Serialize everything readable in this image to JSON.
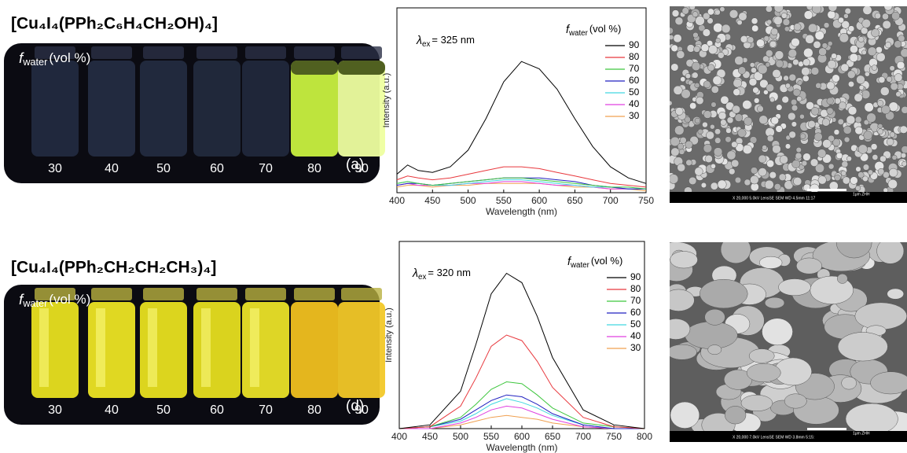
{
  "photos": [
    {
      "title": "[Cu₄I₄(PPh₂C₆H₄CH₂OH)₄]",
      "label_symbol": "f",
      "label_subscript": "water",
      "label_unit": "(vol %)",
      "vials": [
        30,
        40,
        50,
        60,
        70,
        80,
        90
      ],
      "panel": "(a)"
    },
    {
      "title": "[Cu₄I₄(PPh₂CH₂CH₂CH₃)₄]",
      "label_symbol": "f",
      "label_subscript": "water",
      "label_unit": "(vol %)",
      "vials": [
        30,
        40,
        50,
        60,
        70,
        80,
        90
      ],
      "panel": "(d)"
    }
  ],
  "sem": [
    {
      "footer": "X 20,000   5.0kV  LensSE SEM   WD 4.5mm  11:17",
      "scale": "1μm  ZHH"
    },
    {
      "footer": "X 20,000   7.0kV  LensSE SEM   WD 3.8mm  5:15:",
      "scale": "1μm  ZHH"
    }
  ],
  "chart_data": [
    {
      "type": "line",
      "x_label": "Wavelength (nm)",
      "y_label": "Intensity (a.u.)",
      "annotation": {
        "symbol": "λ",
        "subscript": "ex",
        "text": "= 325 nm"
      },
      "legend_title": {
        "symbol": "f",
        "subscript": "water",
        "unit": "(vol %)"
      },
      "x": [
        400,
        415,
        430,
        450,
        475,
        500,
        525,
        550,
        575,
        600,
        625,
        650,
        675,
        700,
        725,
        750
      ],
      "xlim": [
        400,
        750
      ],
      "xticks": [
        400,
        450,
        500,
        550,
        600,
        650,
        700,
        750
      ],
      "ylim": [
        0,
        100
      ],
      "series": [
        {
          "name": "90",
          "color": "#000000",
          "values": [
            10,
            15,
            12,
            11,
            14,
            23,
            40,
            60,
            71,
            67,
            56,
            40,
            25,
            14,
            8,
            5
          ]
        },
        {
          "name": "80",
          "color": "#e8383d",
          "values": [
            7,
            9,
            8,
            7,
            8,
            10,
            12,
            14,
            14,
            13,
            11,
            9,
            7,
            5,
            4,
            3
          ]
        },
        {
          "name": "70",
          "color": "#3ec63e",
          "values": [
            5,
            6,
            5,
            4,
            5,
            6,
            7,
            8,
            8,
            7,
            6,
            5,
            4,
            3,
            3,
            2
          ]
        },
        {
          "name": "60",
          "color": "#2020c0",
          "values": [
            4,
            5,
            5,
            4,
            5,
            6,
            7,
            8,
            8,
            8,
            7,
            6,
            4,
            3,
            2,
            2
          ]
        },
        {
          "name": "50",
          "color": "#40d8e0",
          "values": [
            5,
            6,
            5,
            4,
            4,
            5,
            6,
            7,
            7,
            6,
            5,
            4,
            3,
            3,
            2,
            2
          ]
        },
        {
          "name": "40",
          "color": "#e040e0",
          "values": [
            4,
            5,
            4,
            4,
            4,
            5,
            5,
            6,
            6,
            5,
            4,
            4,
            3,
            2,
            2,
            2
          ]
        },
        {
          "name": "30",
          "color": "#f0a050",
          "values": [
            3,
            4,
            4,
            3,
            4,
            4,
            5,
            5,
            5,
            5,
            4,
            3,
            3,
            2,
            2,
            1
          ]
        }
      ]
    },
    {
      "type": "line",
      "x_label": "Wavelength (nm)",
      "y_label": "Intensity (a.u.)",
      "annotation": {
        "symbol": "λ",
        "subscript": "ex",
        "text": "= 320 nm"
      },
      "legend_title": {
        "symbol": "f",
        "subscript": "water",
        "unit": "(vol %)"
      },
      "x": [
        400,
        450,
        500,
        525,
        550,
        575,
        600,
        625,
        650,
        700,
        750,
        800
      ],
      "xlim": [
        400,
        800
      ],
      "xticks": [
        400,
        450,
        500,
        550,
        600,
        650,
        700,
        750,
        800
      ],
      "ylim": [
        0,
        100
      ],
      "series": [
        {
          "name": "90",
          "color": "#000000",
          "values": [
            0,
            2,
            20,
            45,
            72,
            83,
            78,
            60,
            38,
            10,
            2,
            0
          ]
        },
        {
          "name": "80",
          "color": "#e8383d",
          "values": [
            0,
            1,
            12,
            27,
            44,
            50,
            47,
            36,
            22,
            6,
            1,
            0
          ]
        },
        {
          "name": "70",
          "color": "#3ec63e",
          "values": [
            0,
            1,
            6,
            13,
            21,
            25,
            24,
            18,
            11,
            3,
            1,
            0
          ]
        },
        {
          "name": "60",
          "color": "#2020c0",
          "values": [
            0,
            1,
            5,
            10,
            15,
            18,
            17,
            13,
            8,
            2,
            0,
            0
          ]
        },
        {
          "name": "50",
          "color": "#40d8e0",
          "values": [
            0,
            1,
            4,
            8,
            13,
            16,
            14,
            11,
            7,
            2,
            0,
            0
          ]
        },
        {
          "name": "40",
          "color": "#e040e0",
          "values": [
            0,
            0,
            3,
            6,
            10,
            12,
            11,
            8,
            5,
            1,
            0,
            0
          ]
        },
        {
          "name": "30",
          "color": "#f0a050",
          "values": [
            0,
            0,
            2,
            4,
            6,
            7,
            6,
            5,
            3,
            1,
            0,
            0
          ]
        }
      ]
    }
  ]
}
